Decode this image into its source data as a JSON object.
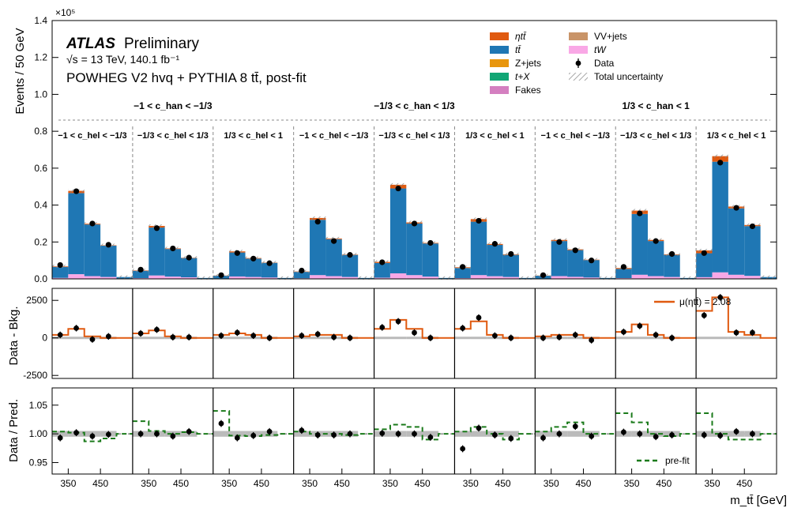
{
  "header": {
    "brand": "ATLAS",
    "status": "Preliminary",
    "energy_line": "√s = 13 TeV, 140.1 fb⁻¹",
    "generator_line": "POWHEG V2 hvq + PYTHIA 8 tt̄, post-fit"
  },
  "legend": {
    "col1": [
      {
        "label": "ηtt̄",
        "kind": "fill",
        "color": "#e05a10"
      },
      {
        "label": "tt̄",
        "kind": "fill",
        "color": "#1f77b4"
      },
      {
        "label": "Z+jets",
        "kind": "fill",
        "color": "#e8960e"
      },
      {
        "label": "t+X",
        "kind": "fill",
        "color": "#11a675"
      },
      {
        "label": "Fakes",
        "kind": "fill",
        "color": "#d47fc0"
      }
    ],
    "col2": [
      {
        "label": "VV+jets",
        "kind": "fill",
        "color": "#c99468"
      },
      {
        "label": "tW",
        "kind": "fill",
        "color": "#f9a8e6"
      },
      {
        "label": "Data",
        "kind": "marker",
        "color": "#000000"
      },
      {
        "label": "Total uncertainty",
        "kind": "hatch",
        "color": "#888888"
      }
    ]
  },
  "region_labels": {
    "chan": [
      "−1 < c_han < −1/3",
      "−1/3 < c_han < 1/3",
      "1/3 < c_han < 1"
    ],
    "chel": [
      "−1 < c_hel < −1/3",
      "−1/3 < c_hel < 1/3",
      "1/3 < c_hel < 1"
    ]
  },
  "ratio_legends": {
    "mu_label": "μ(ηtt̄) = 2.08",
    "prefit_label": "pre-fit"
  },
  "chart_data": [
    {
      "type": "bar",
      "panel": "main",
      "ylabel": "Events / 50 GeV",
      "y_multiplier": "×10⁵",
      "ylim": [
        0,
        140000
      ],
      "yticks": [
        0,
        20000,
        40000,
        60000,
        80000,
        100000,
        120000,
        140000
      ],
      "ytick_labels": [
        "0.0",
        "0.2",
        "0.4",
        "0.6",
        "0.8",
        "1.0",
        "1.2",
        "1.4"
      ],
      "xticks": [
        350,
        450
      ],
      "groups": 9,
      "bins_per_group": 5,
      "bin_width_gev": 50,
      "x_start_gev": 300,
      "series": [
        {
          "name": "tt̄",
          "values": [
            [
              6000,
              44000,
              28000,
              17000,
              1000
            ],
            [
              4000,
              26000,
              15000,
              10500,
              500
            ],
            [
              1500,
              13000,
              10000,
              8000,
              500
            ],
            [
              3500,
              30000,
              20000,
              12000,
              500
            ],
            [
              8000,
              46000,
              28000,
              18000,
              500
            ],
            [
              5500,
              29000,
              17000,
              12000,
              500
            ],
            [
              1500,
              19000,
              14500,
              9500,
              500
            ],
            [
              5000,
              33000,
              19000,
              12000,
              500
            ],
            [
              13000,
              60000,
              36000,
              27000,
              1000
            ]
          ]
        },
        {
          "name": "ηtt̄",
          "values": [
            [
              300,
              1200,
              400,
              200,
              0
            ],
            [
              200,
              900,
              300,
              150,
              0
            ],
            [
              100,
              600,
              300,
              150,
              0
            ],
            [
              200,
              1000,
              400,
              200,
              0
            ],
            [
              600,
              2000,
              600,
              300,
              0
            ],
            [
              400,
              1400,
              500,
              300,
              0
            ],
            [
              100,
              600,
              400,
              200,
              0
            ],
            [
              500,
              1800,
              600,
              300,
              0
            ],
            [
              1500,
              3000,
              1000,
              600,
              0
            ]
          ]
        },
        {
          "name": "tW",
          "values": [
            [
              500,
              2500,
              1500,
              1000,
              0
            ],
            [
              400,
              1800,
              1200,
              800,
              0
            ],
            [
              200,
              1300,
              1000,
              700,
              0
            ],
            [
              300,
              2000,
              1500,
              1000,
              0
            ],
            [
              600,
              3000,
              2000,
              1200,
              0
            ],
            [
              400,
              2000,
              1400,
              1000,
              0
            ],
            [
              200,
              1500,
              1100,
              700,
              0
            ],
            [
              400,
              2200,
              1500,
              1000,
              0
            ],
            [
              900,
              3500,
              2200,
              1600,
              0
            ]
          ]
        }
      ],
      "data": [
        [
          7500,
          47500,
          30000,
          18500,
          1000
        ],
        [
          5000,
          27500,
          16500,
          11500,
          500
        ],
        [
          2000,
          14000,
          11000,
          8500,
          500
        ],
        [
          4500,
          31000,
          20500,
          13000,
          500
        ],
        [
          9000,
          49000,
          30000,
          19500,
          500
        ],
        [
          6500,
          31500,
          19000,
          13500,
          500
        ],
        [
          2000,
          20000,
          15500,
          10000,
          500
        ],
        [
          6500,
          35500,
          20500,
          13500,
          500
        ],
        [
          14000,
          63000,
          38500,
          28500,
          1000
        ]
      ]
    },
    {
      "type": "bar",
      "panel": "data-minus-background",
      "ylabel": "Data - Bkg.",
      "ylim": [
        -2700,
        3300
      ],
      "yticks": [
        -2500,
        0,
        2500
      ],
      "series_name": "μ(ηtt̄) = 2.08",
      "signal_step": [
        [
          200,
          600,
          100,
          0,
          0
        ],
        [
          300,
          500,
          100,
          0,
          0
        ],
        [
          200,
          300,
          200,
          0,
          0
        ],
        [
          100,
          200,
          200,
          0,
          0
        ],
        [
          600,
          1200,
          600,
          0,
          0
        ],
        [
          600,
          1100,
          200,
          0,
          0
        ],
        [
          100,
          200,
          200,
          0,
          0
        ],
        [
          400,
          900,
          200,
          0,
          0
        ],
        [
          1800,
          2700,
          400,
          200,
          0
        ]
      ],
      "data": [
        [
          200,
          650,
          -100,
          100,
          0
        ],
        [
          300,
          550,
          50,
          50,
          0
        ],
        [
          150,
          350,
          150,
          0,
          0
        ],
        [
          150,
          250,
          50,
          0,
          0
        ],
        [
          700,
          1100,
          350,
          0,
          0
        ],
        [
          650,
          1350,
          150,
          0,
          0
        ],
        [
          0,
          50,
          200,
          -150,
          0
        ],
        [
          400,
          800,
          200,
          0,
          0
        ],
        [
          1500,
          2700,
          350,
          350,
          0
        ]
      ]
    },
    {
      "type": "bar",
      "panel": "data-over-prediction",
      "ylabel": "Data / Pred.",
      "ylim": [
        0.93,
        1.08
      ],
      "yticks": [
        0.95,
        1.0,
        1.05
      ],
      "ytick_labels": [
        "0.95",
        "1.00",
        "1.05"
      ],
      "xlabel": "m_tt̄ [GeV]",
      "prefit_step": [
        [
          1.004,
          1.002,
          0.987,
          0.992,
          1.0
        ],
        [
          1.022,
          1.005,
          1.0,
          1.003,
          1.0
        ],
        [
          1.04,
          0.997,
          0.996,
          0.998,
          1.0
        ],
        [
          1.004,
          1.0,
          1.0,
          0.998,
          1.0
        ],
        [
          1.008,
          1.016,
          1.012,
          0.99,
          1.0
        ],
        [
          1.004,
          1.012,
          1.0,
          0.99,
          1.0
        ],
        [
          1.004,
          1.012,
          1.02,
          1.0,
          1.0
        ],
        [
          1.036,
          1.02,
          1.0,
          0.996,
          1.0
        ],
        [
          1.036,
          1.0,
          0.99,
          0.99,
          1.0
        ]
      ],
      "data": [
        [
          0.993,
          1.002,
          0.996,
          0.999,
          1.0
        ],
        [
          1.0,
          1.0,
          0.996,
          1.004,
          1.0
        ],
        [
          1.018,
          0.993,
          0.997,
          1.004,
          1.0
        ],
        [
          1.006,
          0.998,
          0.998,
          1.0,
          1.0
        ],
        [
          1.001,
          1.0,
          1.0,
          0.994,
          1.0
        ],
        [
          0.974,
          1.01,
          0.998,
          0.992,
          1.0
        ],
        [
          0.993,
          1.0,
          1.013,
          0.996,
          1.0
        ],
        [
          1.003,
          1.0,
          0.995,
          0.998,
          1.0
        ],
        [
          0.998,
          0.997,
          1.004,
          1.0,
          1.0
        ]
      ]
    }
  ]
}
